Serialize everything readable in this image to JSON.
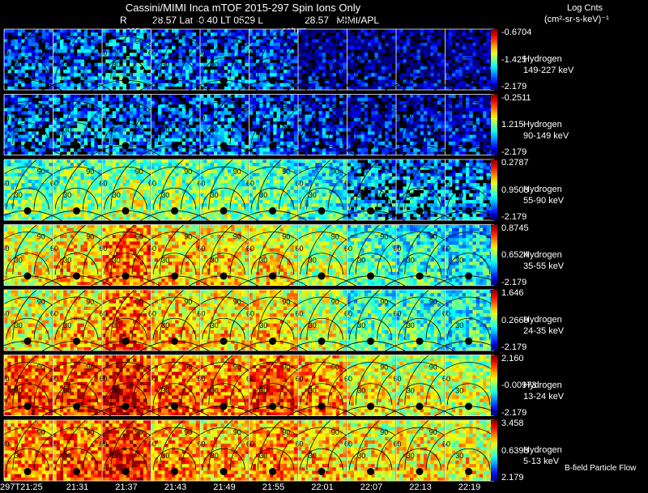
{
  "header": {
    "line1": "Cassini/MIMI Inca mTOF  2015-297   Spin   Ions Only",
    "r_label": "R",
    "r_value": "28.57",
    "lat_label": "Lat",
    "lat_value": "-0.40",
    "lt_label": "LT",
    "lt_value": "0529",
    "l_label": "L",
    "l_value": "28.57",
    "source": "MIMI/APL",
    "saturn_left": "saturn",
    "saturn_right": "saturn"
  },
  "colorbar_title": "Log Cnts",
  "colorbar_units": "(cm²-sr-s-keV)⁻¹",
  "footer_note": "B-field Particle Flow",
  "chart_data": {
    "type": "heatmap",
    "columns": [
      "297T21:25",
      "21:31",
      "21:37",
      "21:43",
      "21:49",
      "21:55",
      "22:01",
      "22:07",
      "22:13",
      "22:19"
    ],
    "contour_labels": [
      "30",
      "60",
      "90"
    ],
    "rows": [
      {
        "species": "Hydrogen",
        "energy": "149-227 keV",
        "max": "-0.6704",
        "mid": "-1.425",
        "min": "-2.179",
        "levels": [
          0.25,
          0.3,
          0.35,
          0.28,
          0.28,
          0.25,
          0.12,
          0.12,
          0.12,
          0.1
        ]
      },
      {
        "species": "Hydrogen",
        "energy": "90-149 keV",
        "max": "-0.2511",
        "mid": "1.215",
        "min": "-2.179",
        "levels": [
          0.3,
          0.33,
          0.33,
          0.3,
          0.3,
          0.28,
          0.22,
          0.18,
          0.18,
          0.18
        ]
      },
      {
        "species": "Hydrogen",
        "energy": "55-90 keV",
        "max": "0.2787",
        "mid": "0.9503",
        "min": "-2.179",
        "levels": [
          0.52,
          0.55,
          0.58,
          0.56,
          0.55,
          0.52,
          0.45,
          0.38,
          0.35,
          0.33
        ]
      },
      {
        "species": "Hydrogen",
        "energy": "35-55 keV",
        "max": "0.8745",
        "mid": "0.6524",
        "min": "-2.179",
        "levels": [
          0.65,
          0.72,
          0.8,
          0.72,
          0.7,
          0.68,
          0.6,
          0.5,
          0.45,
          0.42
        ]
      },
      {
        "species": "Hydrogen",
        "energy": "24-35 keV",
        "max": "1.646",
        "mid": "0.2669",
        "min": "-2.179",
        "levels": [
          0.66,
          0.72,
          0.82,
          0.72,
          0.7,
          0.72,
          0.62,
          0.5,
          0.48,
          0.45
        ]
      },
      {
        "species": "Hydrogen",
        "energy": "13-24 keV",
        "max": "2.160",
        "mid": "-0.00973",
        "min": "-2.179",
        "levels": [
          0.85,
          0.85,
          0.92,
          0.82,
          0.8,
          0.85,
          0.78,
          0.66,
          0.64,
          0.62
        ]
      },
      {
        "species": "Hydrogen",
        "energy": "5-13 keV",
        "max": "3.458",
        "mid": "0.6393",
        "min": "2.179",
        "levels": [
          0.8,
          0.82,
          0.9,
          0.78,
          0.75,
          0.78,
          0.72,
          0.68,
          0.68,
          0.66
        ]
      }
    ]
  }
}
